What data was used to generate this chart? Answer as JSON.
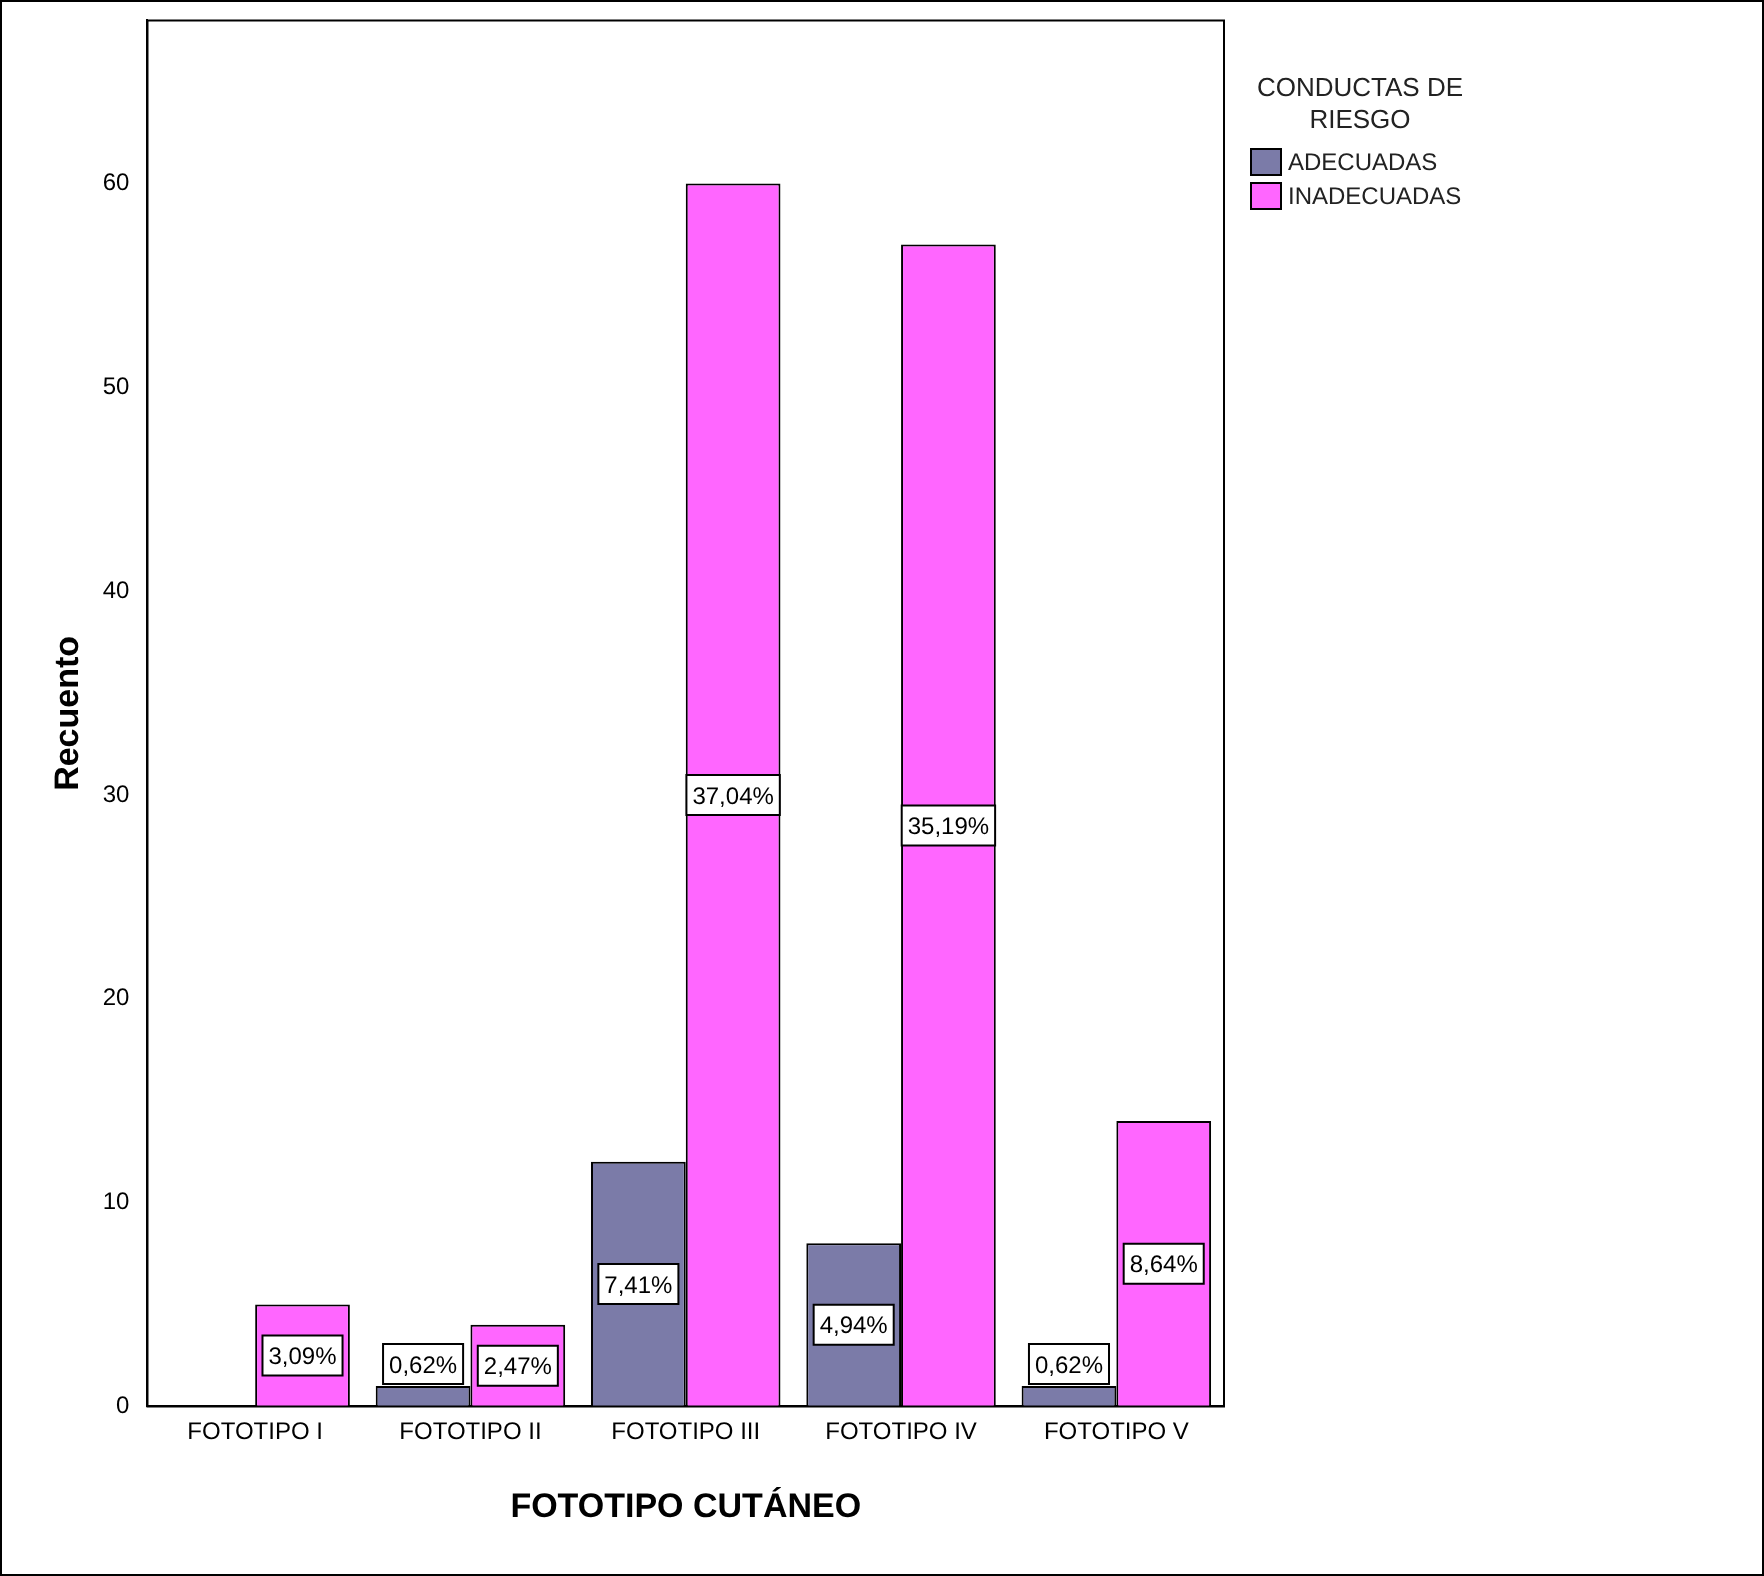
{
  "chart_data": {
    "type": "bar",
    "xlabel": "FOTOTIPO CUTÁNEO",
    "ylabel": "Recuento",
    "legend_title": "CONDUCTAS DE RIESGO",
    "categories": [
      "FOTOTIPO I",
      "FOTOTIPO II",
      "FOTOTIPO III",
      "FOTOTIPO IV",
      "FOTOTIPO V"
    ],
    "series": [
      {
        "name": "ADECUADAS",
        "color": "#7b7ba8",
        "values": [
          0,
          1,
          12,
          8,
          1
        ]
      },
      {
        "name": "INADECUADAS",
        "color": "#ff66ff",
        "values": [
          5,
          4,
          60,
          57,
          14
        ]
      }
    ],
    "annotations": [
      {
        "text": "3,09%",
        "x": "FOTOTIPO I",
        "y": 2.5
      },
      {
        "text": "0,62%",
        "x": "FOTOTIPO II",
        "y": 1
      },
      {
        "text": "2,47%",
        "x": "FOTOTIPO II",
        "y": 2
      },
      {
        "text": "7,41%",
        "x": "FOTOTIPO III",
        "y": 6
      },
      {
        "text": "37,04%",
        "x": "FOTOTIPO III",
        "y": 30
      },
      {
        "text": "4,94%",
        "x": "FOTOTIPO IV",
        "y": 4
      },
      {
        "text": "35,19%",
        "x": "FOTOTIPO IV",
        "y": 28.5
      },
      {
        "text": "0,62%",
        "x": "FOTOTIPO V",
        "y": 1
      },
      {
        "text": "8,64%",
        "x": "FOTOTIPO V",
        "y": 7
      }
    ],
    "ylim": [
      0,
      68
    ],
    "yticks": [
      0,
      10,
      20,
      30,
      40,
      50,
      60
    ],
    "grid": false,
    "legend": "top right"
  }
}
